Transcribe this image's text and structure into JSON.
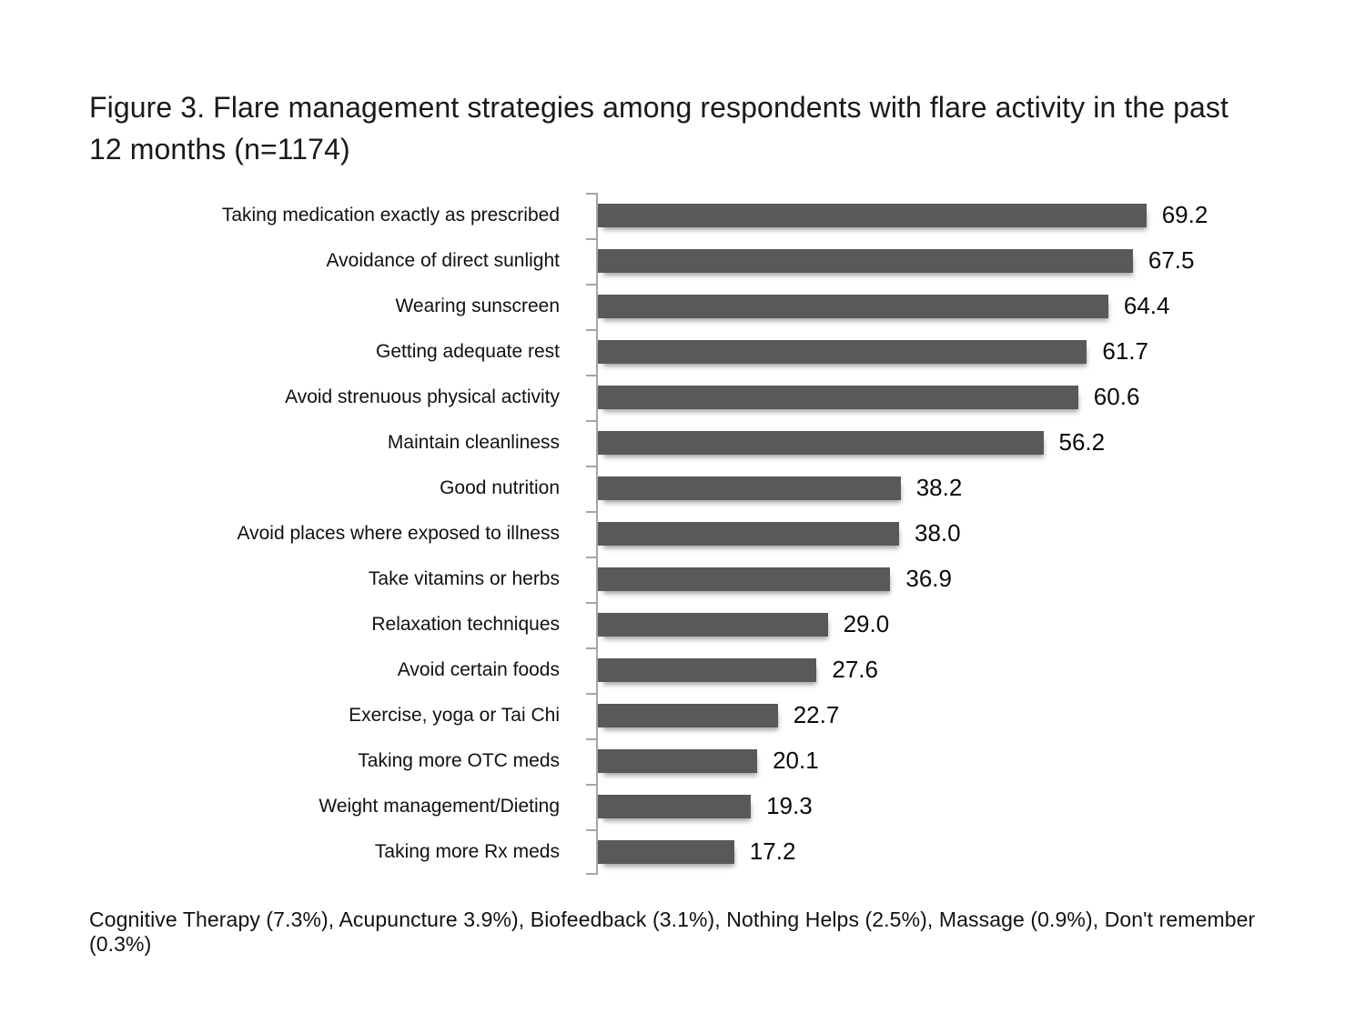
{
  "figure": {
    "title": "Figure 3. Flare management strategies among respondents with flare activity in the past 12 months (n=1174)",
    "footnote": "Cognitive Therapy (7.3%), Acupuncture 3.9%), Biofeedback (3.1%), Nothing Helps (2.5%), Massage (0.9%), Don't remember (0.3%)"
  },
  "chart_data": {
    "type": "bar",
    "orientation": "horizontal",
    "title": "Figure 3. Flare management strategies among respondents with flare activity in the past 12 months (n=1174)",
    "categories": [
      "Taking medication exactly as prescribed",
      "Avoidance of direct sunlight",
      "Wearing sunscreen",
      "Getting adequate rest",
      "Avoid strenuous physical activity",
      "Maintain cleanliness",
      "Good nutrition",
      "Avoid places where exposed to illness",
      "Take vitamins or herbs",
      "Relaxation techniques",
      "Avoid certain foods",
      "Exercise, yoga or Tai Chi",
      "Taking more OTC meds",
      "Weight management/Dieting",
      "Taking more Rx meds"
    ],
    "values": [
      69.2,
      67.5,
      64.4,
      61.7,
      60.6,
      56.2,
      38.2,
      38.0,
      36.9,
      29.0,
      27.6,
      22.7,
      20.1,
      19.3,
      17.2
    ],
    "value_labels": [
      "69.2",
      "67.5",
      "64.4",
      "61.7",
      "60.6",
      "56.2",
      "38.2",
      "38.0",
      "36.9",
      "29.0",
      "27.6",
      "22.7",
      "20.1",
      "19.3",
      "17.2"
    ],
    "xlabel": "",
    "ylabel": "",
    "xlim": [
      0,
      80
    ],
    "grid": false,
    "legend": false,
    "data_labels": true,
    "bar_color": "#595959",
    "axis_color": "#a6a6a6",
    "annotation": "Cognitive Therapy (7.3%), Acupuncture 3.9%), Biofeedback (3.1%), Nothing Helps (2.5%), Massage (0.9%), Don't remember (0.3%)"
  }
}
